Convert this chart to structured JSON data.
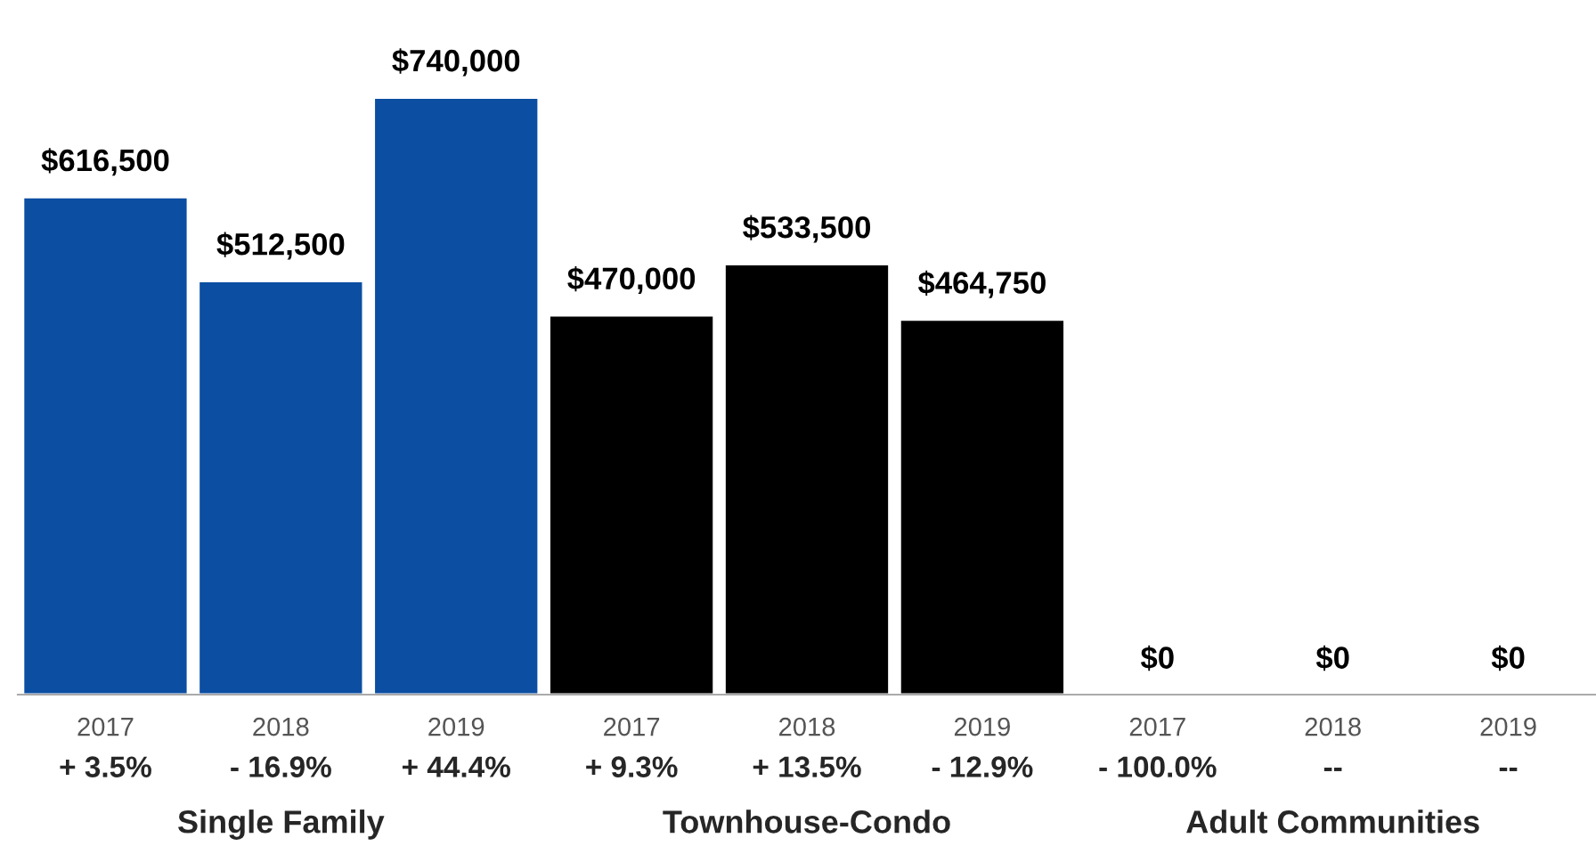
{
  "chart_data": {
    "type": "bar",
    "categories": [
      "2017",
      "2018",
      "2019",
      "2017",
      "2018",
      "2019",
      "2017",
      "2018",
      "2019"
    ],
    "series": [
      {
        "color": "#0b4ea2",
        "values": [
          616500,
          512500,
          740000,
          null,
          null,
          null,
          null,
          null,
          null
        ],
        "value_labels": [
          "$616,500",
          "$512,500",
          "$740,000",
          null,
          null,
          null,
          null,
          null,
          null
        ]
      },
      {
        "color": "#000000",
        "values": [
          null,
          null,
          null,
          470000,
          533500,
          464750,
          null,
          null,
          null
        ],
        "value_labels": [
          null,
          null,
          null,
          "$470,000",
          "$533,500",
          "$464,750",
          null,
          null,
          null
        ]
      },
      {
        "values": [
          null,
          null,
          null,
          null,
          null,
          null,
          0,
          0,
          0
        ],
        "value_labels": [
          null,
          null,
          null,
          null,
          null,
          null,
          "$0",
          "$0",
          "$0"
        ]
      }
    ],
    "annotations": [
      "+ 3.5%",
      "- 16.9%",
      "+ 44.4%",
      "+ 9.3%",
      "+ 13.5%",
      "- 12.9%",
      "- 100.0%",
      "--",
      "--",
      "Single Family",
      "Townhouse-Condo",
      "Adult Communities"
    ]
  }
}
